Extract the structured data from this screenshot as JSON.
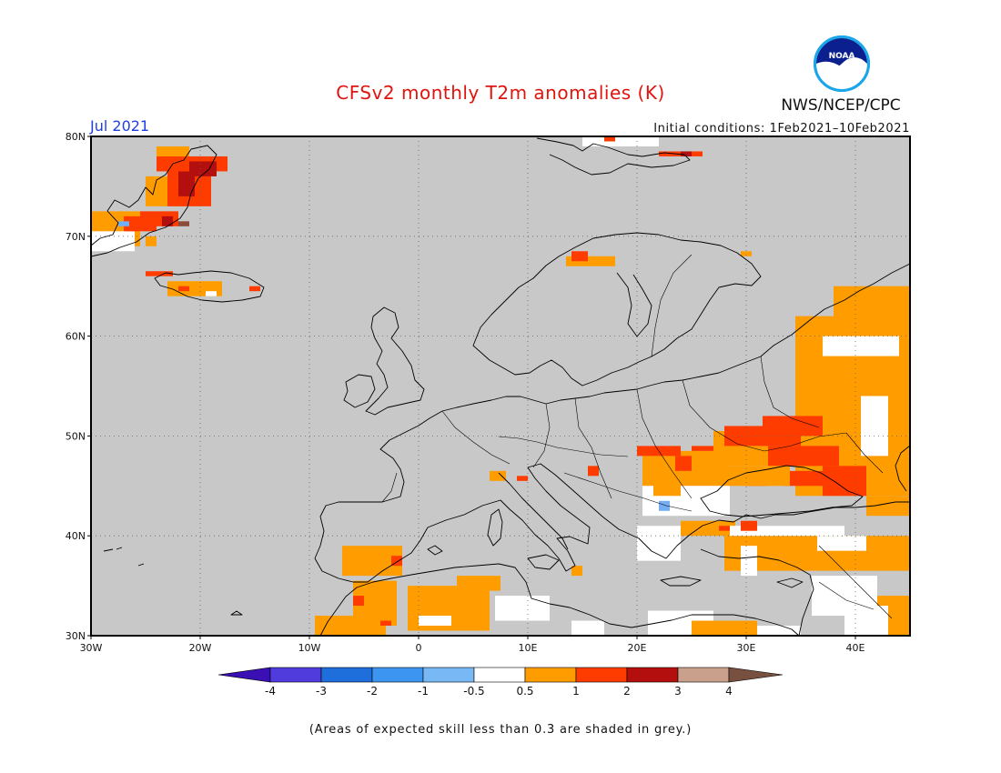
{
  "title": "CFSv2 monthly T2m anomalies (K)",
  "month": "Jul 2021",
  "initial_conditions": "Initial conditions: 1Feb2021–10Feb2021",
  "organization": "NWS/NCEP/CPC",
  "logo_text": "NOAA",
  "footnote": "(Areas of expected skill less than 0.3 are shaded in grey.)",
  "map": {
    "lon_range": [
      -30,
      45
    ],
    "lat_range": [
      30,
      80
    ],
    "lon_ticks": [
      {
        "lon": -30,
        "label": "30W"
      },
      {
        "lon": -20,
        "label": "20W"
      },
      {
        "lon": -10,
        "label": "10W"
      },
      {
        "lon": 0,
        "label": "0"
      },
      {
        "lon": 10,
        "label": "10E"
      },
      {
        "lon": 20,
        "label": "20E"
      },
      {
        "lon": 30,
        "label": "30E"
      },
      {
        "lon": 40,
        "label": "40E"
      }
    ],
    "lat_ticks": [
      {
        "lat": 80,
        "label": "80N"
      },
      {
        "lat": 70,
        "label": "70N"
      },
      {
        "lat": 60,
        "label": "60N"
      },
      {
        "lat": 50,
        "label": "50N"
      },
      {
        "lat": 40,
        "label": "40N"
      },
      {
        "lat": 30,
        "label": "30N"
      }
    ],
    "grid": true,
    "colors": {
      "grey": "#c8c8c8",
      "white": "#ffffff",
      "orange": "#ff9d00",
      "red": "#ff3c00",
      "darkred": "#b40f0f",
      "brown": "#8c4a3c",
      "lightblue": "#74aef2"
    },
    "anomaly_regions": [
      {
        "class": "orange",
        "lon": [
          38.0,
          45.0
        ],
        "lat": [
          60.0,
          65.0
        ]
      },
      {
        "class": "orange",
        "lon": [
          34.5,
          45.0
        ],
        "lat": [
          44.0,
          62.0
        ]
      },
      {
        "class": "white",
        "lon": [
          37.0,
          44.0
        ],
        "lat": [
          58.0,
          60.0
        ]
      },
      {
        "class": "white",
        "lon": [
          40.5,
          43.0
        ],
        "lat": [
          48.0,
          54.0
        ]
      },
      {
        "class": "orange",
        "lon": [
          27.0,
          39.0
        ],
        "lat": [
          47.0,
          50.5
        ]
      },
      {
        "class": "red",
        "lon": [
          28.0,
          35.0
        ],
        "lat": [
          49.0,
          51.0
        ]
      },
      {
        "class": "red",
        "lon": [
          31.5,
          37.0
        ],
        "lat": [
          50.0,
          52.0
        ]
      },
      {
        "class": "red",
        "lon": [
          32.0,
          38.5
        ],
        "lat": [
          47.0,
          49.0
        ]
      },
      {
        "class": "red",
        "lon": [
          37.0,
          41.0
        ],
        "lat": [
          44.0,
          47.0
        ]
      },
      {
        "class": "red",
        "lon": [
          33.5,
          37.0
        ],
        "lat": [
          45.0,
          46.5
        ]
      },
      {
        "class": "red",
        "lon": [
          30.0,
          32.0
        ],
        "lat": [
          45.0,
          46.0
        ]
      },
      {
        "class": "orange",
        "lon": [
          20.5,
          28.0
        ],
        "lat": [
          45.0,
          48.5
        ]
      },
      {
        "class": "red",
        "lon": [
          20.0,
          24.0
        ],
        "lat": [
          48.0,
          49.0
        ]
      },
      {
        "class": "red",
        "lon": [
          25.0,
          27.0
        ],
        "lat": [
          48.5,
          49.0
        ]
      },
      {
        "class": "red",
        "lon": [
          23.5,
          25.0
        ],
        "lat": [
          46.5,
          48.0
        ]
      },
      {
        "class": "orange",
        "lon": [
          28.0,
          34.0
        ],
        "lat": [
          45.0,
          47.0
        ]
      },
      {
        "class": "white",
        "lon": [
          20.5,
          28.5
        ],
        "lat": [
          42.0,
          45.0
        ]
      },
      {
        "class": "orange",
        "lon": [
          21.5,
          24.0
        ],
        "lat": [
          44.0,
          46.0
        ]
      },
      {
        "class": "lightblue",
        "lon": [
          22.0,
          23.0
        ],
        "lat": [
          42.5,
          43.5
        ]
      },
      {
        "class": "white",
        "lon": [
          20.0,
          24.0
        ],
        "lat": [
          37.5,
          41.0
        ]
      },
      {
        "class": "orange",
        "lon": [
          24.0,
          29.0
        ],
        "lat": [
          40.0,
          41.5
        ]
      },
      {
        "class": "orange",
        "lon": [
          28.0,
          45.0
        ],
        "lat": [
          36.5,
          40.0
        ]
      },
      {
        "class": "white",
        "lon": [
          28.5,
          39.0
        ],
        "lat": [
          40.0,
          41.0
        ]
      },
      {
        "class": "white",
        "lon": [
          36.5,
          41.0
        ],
        "lat": [
          38.5,
          40.0
        ]
      },
      {
        "class": "white",
        "lon": [
          29.5,
          31.0
        ],
        "lat": [
          36.0,
          39.0
        ]
      },
      {
        "class": "red",
        "lon": [
          29.5,
          31.0
        ],
        "lat": [
          40.5,
          41.5
        ]
      },
      {
        "class": "red",
        "lon": [
          27.5,
          28.5
        ],
        "lat": [
          40.5,
          41.0
        ]
      },
      {
        "class": "lightblue",
        "lon": [
          42.0,
          43.0
        ],
        "lat": [
          42.5,
          43.0
        ]
      },
      {
        "class": "orange",
        "lon": [
          41.0,
          45.0
        ],
        "lat": [
          42.0,
          44.0
        ]
      },
      {
        "class": "white",
        "lon": [
          36.0,
          42.0
        ],
        "lat": [
          32.0,
          36.0
        ]
      },
      {
        "class": "orange",
        "lon": [
          42.0,
          45.0
        ],
        "lat": [
          30.0,
          34.0
        ]
      },
      {
        "class": "white",
        "lon": [
          39.0,
          43.0
        ],
        "lat": [
          30.0,
          33.0
        ]
      },
      {
        "class": "orange",
        "lon": [
          -7.0,
          -1.5
        ],
        "lat": [
          36.0,
          39.0
        ]
      },
      {
        "class": "red",
        "lon": [
          -2.5,
          -1.5
        ],
        "lat": [
          37.0,
          38.0
        ]
      },
      {
        "class": "orange",
        "lon": [
          -6.0,
          -2.0
        ],
        "lat": [
          31.0,
          35.5
        ]
      },
      {
        "class": "red",
        "lon": [
          -6.0,
          -5.0
        ],
        "lat": [
          33.0,
          34.0
        ]
      },
      {
        "class": "orange",
        "lon": [
          -9.5,
          -3.0
        ],
        "lat": [
          30.0,
          32.0
        ]
      },
      {
        "class": "red",
        "lon": [
          -3.5,
          -2.5
        ],
        "lat": [
          31.0,
          31.5
        ]
      },
      {
        "class": "orange",
        "lon": [
          -1.0,
          6.5
        ],
        "lat": [
          30.5,
          35.0
        ]
      },
      {
        "class": "white",
        "lon": [
          0.0,
          3.0
        ],
        "lat": [
          31.0,
          32.0
        ]
      },
      {
        "class": "orange",
        "lon": [
          3.5,
          7.5
        ],
        "lat": [
          34.5,
          36.0
        ]
      },
      {
        "class": "white",
        "lon": [
          7.0,
          12.0
        ],
        "lat": [
          31.5,
          34.0
        ]
      },
      {
        "class": "white",
        "lon": [
          14.0,
          17.0
        ],
        "lat": [
          30.0,
          31.5
        ]
      },
      {
        "class": "white",
        "lon": [
          21.0,
          27.0
        ],
        "lat": [
          30.0,
          32.5
        ]
      },
      {
        "class": "orange",
        "lon": [
          25.0,
          31.0
        ],
        "lat": [
          30.0,
          31.5
        ]
      },
      {
        "class": "white",
        "lon": [
          31.0,
          35.0
        ],
        "lat": [
          30.0,
          31.0
        ]
      },
      {
        "class": "orange",
        "lon": [
          14.0,
          15.0
        ],
        "lat": [
          36.0,
          37.0
        ]
      },
      {
        "class": "red",
        "lon": [
          15.5,
          16.5
        ],
        "lat": [
          46.0,
          47.0
        ]
      },
      {
        "class": "orange",
        "lon": [
          6.5,
          8.0
        ],
        "lat": [
          45.5,
          46.5
        ]
      },
      {
        "class": "red",
        "lon": [
          9.0,
          10.0
        ],
        "lat": [
          45.5,
          46.0
        ]
      },
      {
        "class": "orange",
        "lon": [
          -30.0,
          -25.5
        ],
        "lat": [
          69.0,
          72.5
        ]
      },
      {
        "class": "white",
        "lon": [
          -30.0,
          -26.0
        ],
        "lat": [
          68.5,
          70.5
        ]
      },
      {
        "class": "red",
        "lon": [
          -27.0,
          -24.0
        ],
        "lat": [
          70.5,
          72.0
        ]
      },
      {
        "class": "red",
        "lon": [
          -25.5,
          -22.0
        ],
        "lat": [
          71.0,
          72.5
        ]
      },
      {
        "class": "darkred",
        "lon": [
          -23.5,
          -22.5
        ],
        "lat": [
          71.0,
          72.0
        ]
      },
      {
        "class": "brown",
        "lon": [
          -22.0,
          -21.0
        ],
        "lat": [
          71.0,
          71.5
        ]
      },
      {
        "class": "lightblue",
        "lon": [
          -27.5,
          -26.5
        ],
        "lat": [
          71.0,
          71.5
        ]
      },
      {
        "class": "orange",
        "lon": [
          -25.0,
          -24.0
        ],
        "lat": [
          69.0,
          70.0
        ]
      },
      {
        "class": "orange",
        "lon": [
          -25.0,
          -21.5
        ],
        "lat": [
          73.0,
          76.0
        ]
      },
      {
        "class": "red",
        "lon": [
          -23.0,
          -19.0
        ],
        "lat": [
          73.0,
          77.0
        ]
      },
      {
        "class": "darkred",
        "lon": [
          -22.0,
          -20.5
        ],
        "lat": [
          74.0,
          76.5
        ]
      },
      {
        "class": "red",
        "lon": [
          -24.0,
          -17.5
        ],
        "lat": [
          76.5,
          78.0
        ]
      },
      {
        "class": "orange",
        "lon": [
          -24.0,
          -21.0
        ],
        "lat": [
          78.0,
          79.0
        ]
      },
      {
        "class": "darkred",
        "lon": [
          -21.0,
          -18.5
        ],
        "lat": [
          76.0,
          77.5
        ]
      },
      {
        "class": "orange",
        "lon": [
          -23.0,
          -18.0
        ],
        "lat": [
          64.0,
          65.5
        ]
      },
      {
        "class": "red",
        "lon": [
          -22.0,
          -21.0
        ],
        "lat": [
          64.5,
          65.0
        ]
      },
      {
        "class": "red",
        "lon": [
          -15.5,
          -14.5
        ],
        "lat": [
          64.5,
          65.0
        ]
      },
      {
        "class": "white",
        "lon": [
          -19.5,
          -18.5
        ],
        "lat": [
          64.0,
          64.5
        ]
      },
      {
        "class": "red",
        "lon": [
          -25.0,
          -22.5
        ],
        "lat": [
          66.0,
          66.5
        ]
      },
      {
        "class": "orange",
        "lon": [
          13.5,
          18.0
        ],
        "lat": [
          67.0,
          68.0
        ]
      },
      {
        "class": "red",
        "lon": [
          14.0,
          15.5
        ],
        "lat": [
          67.5,
          68.5
        ]
      },
      {
        "class": "orange",
        "lon": [
          29.5,
          30.5
        ],
        "lat": [
          68.0,
          68.5
        ]
      },
      {
        "class": "white",
        "lon": [
          15.0,
          22.0
        ],
        "lat": [
          79.0,
          80.0
        ]
      },
      {
        "class": "red",
        "lon": [
          22.0,
          26.0
        ],
        "lat": [
          78.0,
          78.5
        ]
      },
      {
        "class": "darkred",
        "lon": [
          24.0,
          25.0
        ],
        "lat": [
          78.0,
          78.5
        ]
      },
      {
        "class": "red",
        "lon": [
          17.0,
          18.0
        ],
        "lat": [
          79.5,
          80.0
        ]
      }
    ]
  },
  "colorbar": {
    "bins": [
      {
        "color": "#3a0fb4"
      },
      {
        "color": "#503cdc"
      },
      {
        "color": "#1e6edc"
      },
      {
        "color": "#3c95f0"
      },
      {
        "color": "#78b9f5"
      },
      {
        "color": "#ffffff"
      },
      {
        "color": "#ff9d00"
      },
      {
        "color": "#ff3c00"
      },
      {
        "color": "#b40f0f"
      },
      {
        "color": "#c8a08c"
      },
      {
        "color": "#785040"
      }
    ],
    "labels": [
      "-4",
      "-3",
      "-2",
      "-1",
      "-0.5",
      "0.5",
      "1",
      "2",
      "3",
      "4"
    ]
  }
}
